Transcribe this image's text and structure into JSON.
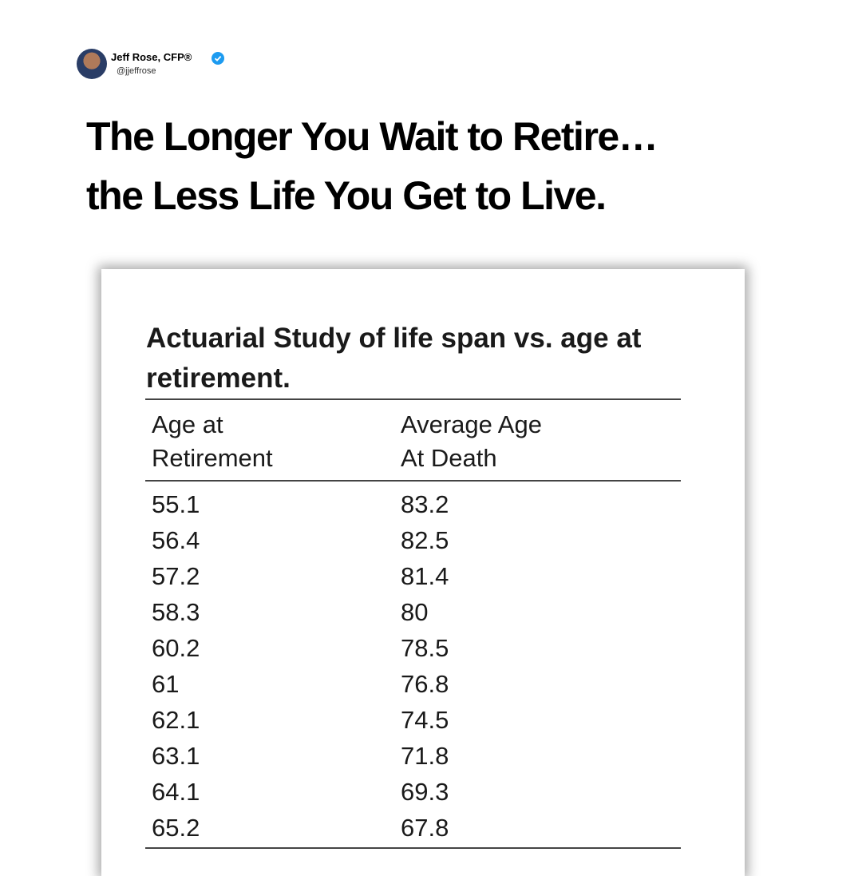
{
  "header": {
    "name": "Jeff Rose, CFP®",
    "handle": "@jjeffrose"
  },
  "headline": [
    "The Longer You Wait to Retire…",
    "the Less Life You Get to Live."
  ],
  "table": {
    "title": "Actuarial Study of life span vs. age at retirement.",
    "columns": [
      [
        "Age at",
        "Retirement"
      ],
      [
        "Average Age",
        "At Death"
      ]
    ],
    "rows": [
      [
        55.1,
        83.2
      ],
      [
        56.4,
        82.5
      ],
      [
        57.2,
        81.4
      ],
      [
        58.3,
        80
      ],
      [
        60.2,
        78.5
      ],
      [
        61,
        76.8
      ],
      [
        62.1,
        74.5
      ],
      [
        63.1,
        71.8
      ],
      [
        64.1,
        69.3
      ],
      [
        65.2,
        67.8
      ]
    ]
  }
}
